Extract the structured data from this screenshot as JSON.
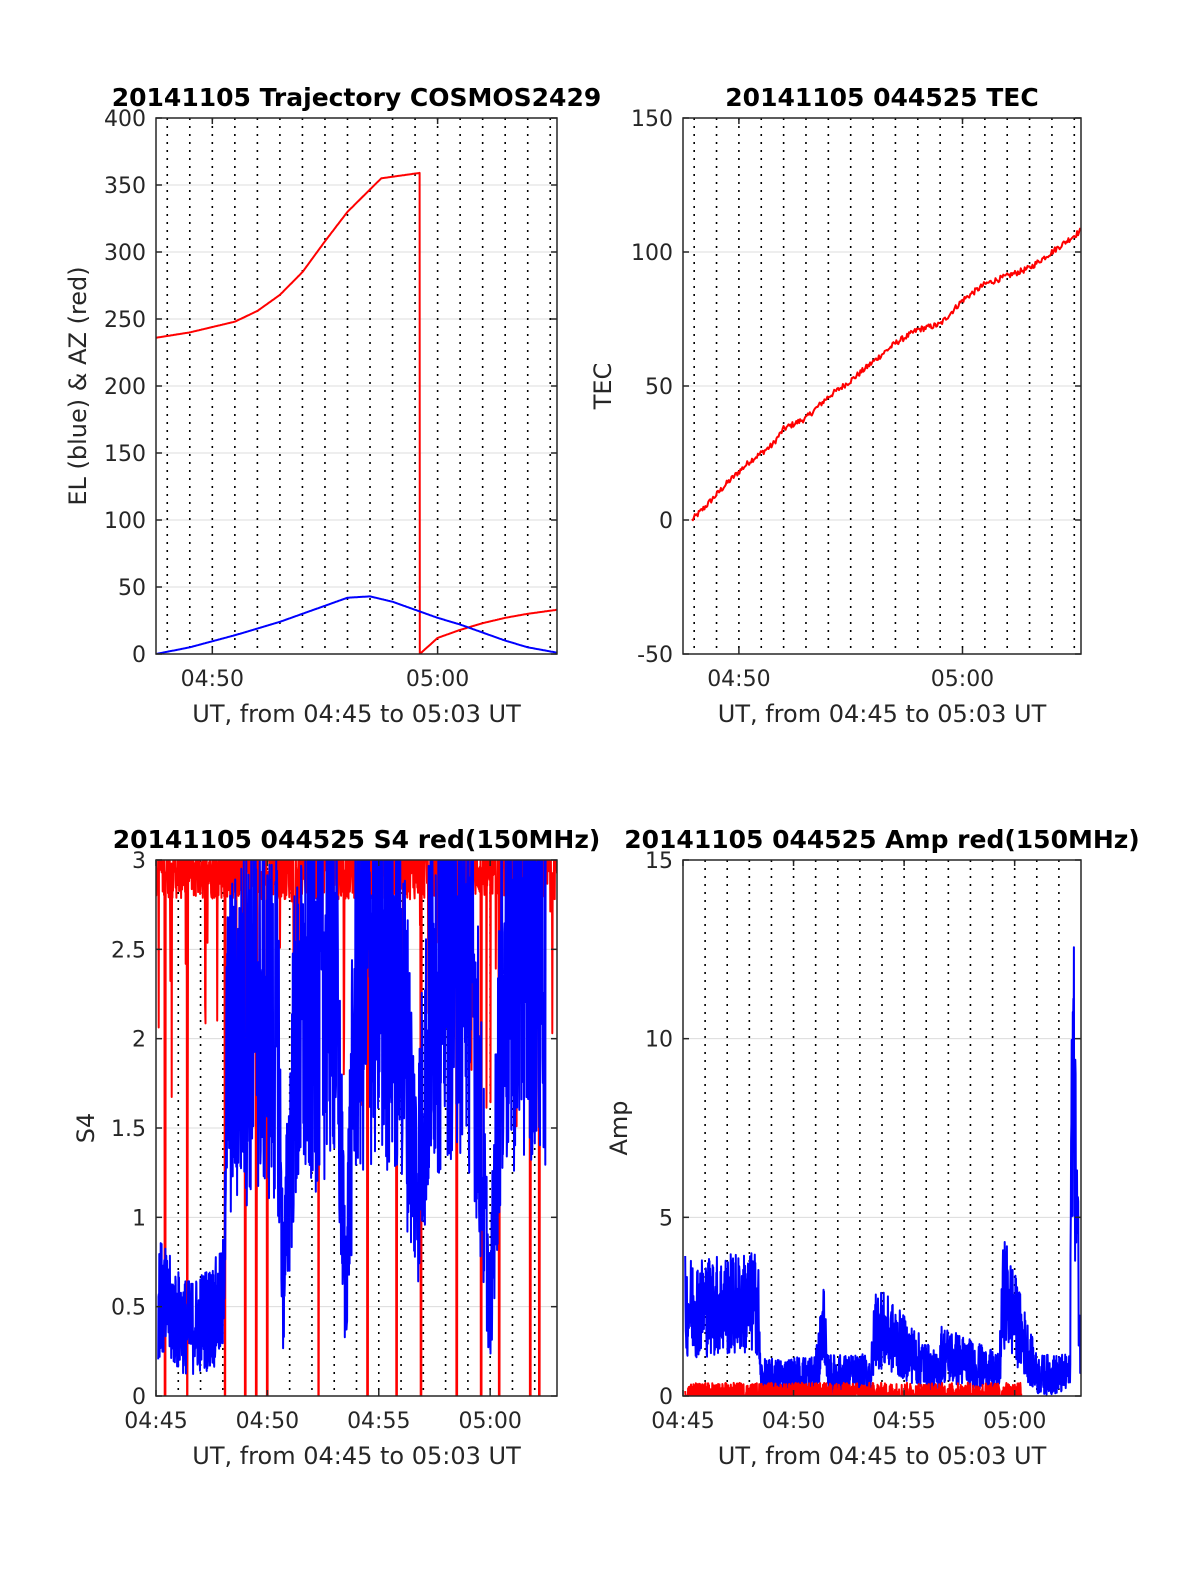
{
  "colors": {
    "red": "#ff0000",
    "blue": "#0000ff",
    "grid": "#dcdcdc",
    "axis": "#262626"
  },
  "chart_data": [
    {
      "type": "line",
      "title": "20141105 Trajectory COSMOS2429",
      "xlabel": "UT, from 04:45 to 05:03 UT",
      "ylabel": "EL (blue) & AZ (red)",
      "xlim": [
        2.5,
        20.3
      ],
      "ylim": [
        0,
        400
      ],
      "yticks": [
        0,
        50,
        100,
        150,
        200,
        250,
        300,
        350,
        400
      ],
      "ytick_labels": [
        "0",
        "50",
        "100",
        "150",
        "200",
        "250",
        "300",
        "350",
        "400"
      ],
      "xticks": [
        5,
        15
      ],
      "xtick_labels": [
        "04:50",
        "05:00"
      ],
      "dotted_minutes": [
        3,
        4,
        5,
        6,
        7,
        8,
        9,
        10,
        11,
        12,
        13,
        14,
        15,
        16,
        17,
        18,
        19,
        20
      ],
      "series": [
        {
          "color": "red",
          "x": [
            2.5,
            4,
            6,
            7,
            8,
            9,
            10,
            11,
            12.5,
            14.2,
            14.21,
            15,
            16,
            17,
            18,
            19,
            20.3
          ],
          "y": [
            236,
            240,
            248,
            256,
            268,
            285,
            308,
            330,
            355,
            359,
            0,
            12,
            18,
            23,
            27,
            30,
            33
          ]
        },
        {
          "color": "blue",
          "x": [
            2.5,
            4,
            6,
            8,
            10,
            11,
            12,
            13,
            14,
            15,
            16,
            17,
            18,
            19,
            20.3
          ],
          "y": [
            0,
            5,
            14,
            24,
            36,
            42,
            43,
            39,
            33,
            27,
            22,
            16,
            10,
            5,
            1
          ]
        }
      ]
    },
    {
      "type": "line",
      "title": "20141105 044525 TEC",
      "xlabel": "UT, from 04:45 to 05:03 UT",
      "ylabel": "TEC",
      "xlim": [
        2.5,
        20.3
      ],
      "ylim": [
        -50,
        150
      ],
      "yticks": [
        -50,
        0,
        50,
        100,
        150
      ],
      "ytick_labels": [
        "-50",
        "0",
        "50",
        "100",
        "150"
      ],
      "xticks": [
        5,
        15
      ],
      "xtick_labels": [
        "04:50",
        "05:00"
      ],
      "dotted_minutes": [
        3,
        4,
        5,
        6,
        7,
        8,
        9,
        10,
        11,
        12,
        13,
        14,
        15,
        16,
        17,
        18,
        19,
        20
      ],
      "series": [
        {
          "color": "red",
          "x": [
            2.9,
            3.5,
            4.5,
            5.5,
            6.5,
            7,
            8,
            9,
            10,
            11,
            12,
            13,
            14,
            15,
            16,
            17,
            18,
            19,
            20.3
          ],
          "y": [
            0,
            5,
            14,
            22,
            28,
            34,
            38,
            46,
            52,
            59,
            66,
            71,
            73,
            82,
            88,
            91,
            94,
            100,
            108
          ]
        }
      ]
    },
    {
      "type": "line",
      "title": "20141105 044525 S4 red(150MHz)",
      "xlabel": "UT, from 04:45 to 05:03 UT",
      "ylabel": "S4",
      "xlim": [
        0,
        18
      ],
      "ylim": [
        0,
        3
      ],
      "yticks": [
        0,
        0.5,
        1,
        1.5,
        2,
        2.5,
        3
      ],
      "ytick_labels": [
        "0",
        "0.5",
        "1",
        "1.5",
        "2",
        "2.5",
        "3"
      ],
      "xticks": [
        0,
        5,
        10,
        15
      ],
      "xtick_labels": [
        "04:45",
        "04:50",
        "04:55",
        "05:00"
      ],
      "dotted_minutes": [
        1,
        2,
        3,
        4,
        5,
        6,
        7,
        8,
        9,
        10,
        11,
        12,
        13,
        14,
        15,
        16,
        17
      ],
      "series": [
        {
          "color": "red",
          "kind": "noise",
          "base": 2.85,
          "amp": 0.35,
          "dips_to_zero": [
            0.4,
            1.4,
            3.1,
            4.0,
            4.5,
            5.0,
            7.3,
            9.5,
            10.8,
            11.9,
            13.5,
            14.6,
            15.4,
            16.8,
            17.2
          ]
        },
        {
          "color": "blue",
          "kind": "noise",
          "x": [
            0.1,
            1.0,
            1.5,
            2.5,
            3.0,
            3.2,
            4.5,
            5.5,
            5.7,
            6.2,
            7.0,
            8.0,
            8.5,
            9.0,
            10.0,
            11.0,
            11.7,
            12.5,
            13.5,
            14.2,
            15.0,
            15.5,
            16.5,
            17.5
          ],
          "y": [
            0.55,
            0.42,
            0.38,
            0.45,
            0.5,
            1.9,
            2.2,
            2.0,
            0.55,
            1.9,
            2.2,
            2.5,
            0.6,
            2.3,
            2.5,
            2.3,
            1.2,
            2.4,
            2.6,
            2.4,
            0.45,
            2.2,
            2.6,
            2.5
          ]
        }
      ]
    },
    {
      "type": "line",
      "title": "20141105 044525 Amp red(150MHz)",
      "xlabel": "UT, from 04:45 to 05:03 UT",
      "ylabel": "Amp",
      "xlim": [
        0,
        18
      ],
      "ylim": [
        0,
        15
      ],
      "yticks": [
        0,
        5,
        10,
        15
      ],
      "ytick_labels": [
        "0",
        "5",
        "10",
        "15"
      ],
      "xticks": [
        0,
        5,
        10,
        15
      ],
      "xtick_labels": [
        "04:45",
        "04:50",
        "04:55",
        "05:00"
      ],
      "dotted_minutes": [
        1,
        2,
        3,
        4,
        5,
        6,
        7,
        8,
        9,
        10,
        11,
        12,
        13,
        14,
        15,
        16,
        17
      ],
      "series": [
        {
          "color": "blue",
          "kind": "noise",
          "x": [
            0.1,
            3.4,
            3.5,
            6.0,
            6.4,
            6.5,
            8.5,
            8.7,
            11.5,
            11.7,
            14.3,
            14.5,
            16.0,
            17.5,
            17.6,
            18.0
          ],
          "y": [
            2.5,
            2.6,
            0.5,
            0.6,
            2.2,
            0.6,
            0.6,
            2.0,
            0.6,
            1.2,
            0.6,
            3.0,
            0.6,
            0.6,
            10.5,
            0.5
          ]
        },
        {
          "color": "red",
          "kind": "noise",
          "x": [
            0.1,
            3.0,
            14.5,
            15.3
          ],
          "y": [
            0.05,
            0.05,
            0.05,
            0.05
          ]
        }
      ]
    }
  ]
}
